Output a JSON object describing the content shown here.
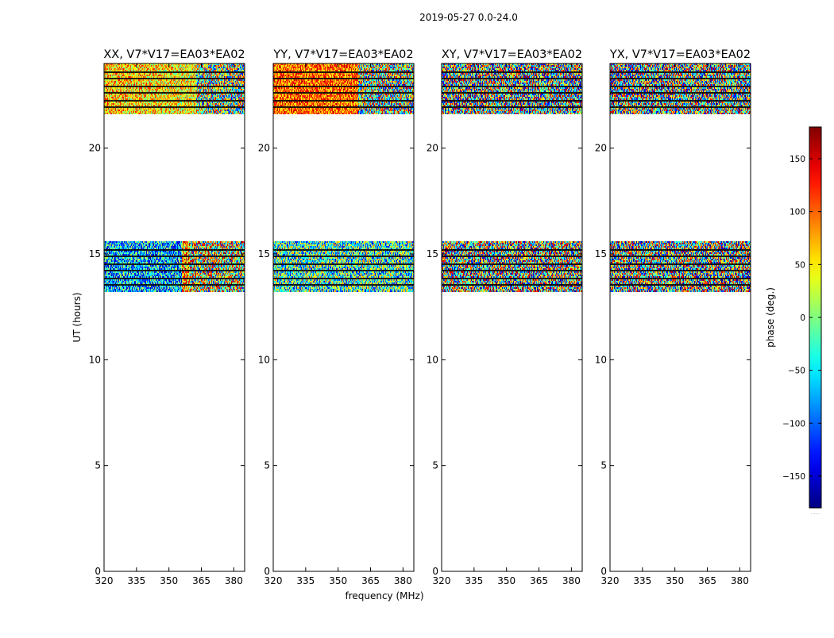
{
  "chart_data": {
    "type": "heatmap",
    "title": "2019-05-27 0.0-24.0",
    "xlabel": "frequency (MHz)",
    "ylabel": "UT (hours)",
    "xlim": [
      320,
      385
    ],
    "ylim": [
      0,
      24
    ],
    "xticks": [
      320,
      335,
      350,
      365,
      380
    ],
    "yticks": [
      0,
      5,
      10,
      15,
      20
    ],
    "colorbar": {
      "label": "phase (deg.)",
      "range": [
        -180,
        180
      ],
      "ticks": [
        -150,
        -100,
        -50,
        0,
        50,
        100,
        150
      ],
      "tick_labels": [
        "−150",
        "−100",
        "−50",
        "0",
        "50",
        "100",
        "150"
      ],
      "colormap": "jet",
      "footer": "......"
    },
    "data_bands_hours": [
      {
        "start": 13.2,
        "end": 15.6
      },
      {
        "start": 21.6,
        "end": 24.0
      }
    ],
    "panels": [
      {
        "title": "XX, V7*V17=EA03*EA02",
        "pattern": "XX"
      },
      {
        "title": "YY, V7*V17=EA03*EA02",
        "pattern": "YY"
      },
      {
        "title": "XY, V7*V17=EA03*EA02",
        "pattern": "XY"
      },
      {
        "title": "YX, V7*V17=EA03*EA02",
        "pattern": "YX"
      }
    ]
  }
}
